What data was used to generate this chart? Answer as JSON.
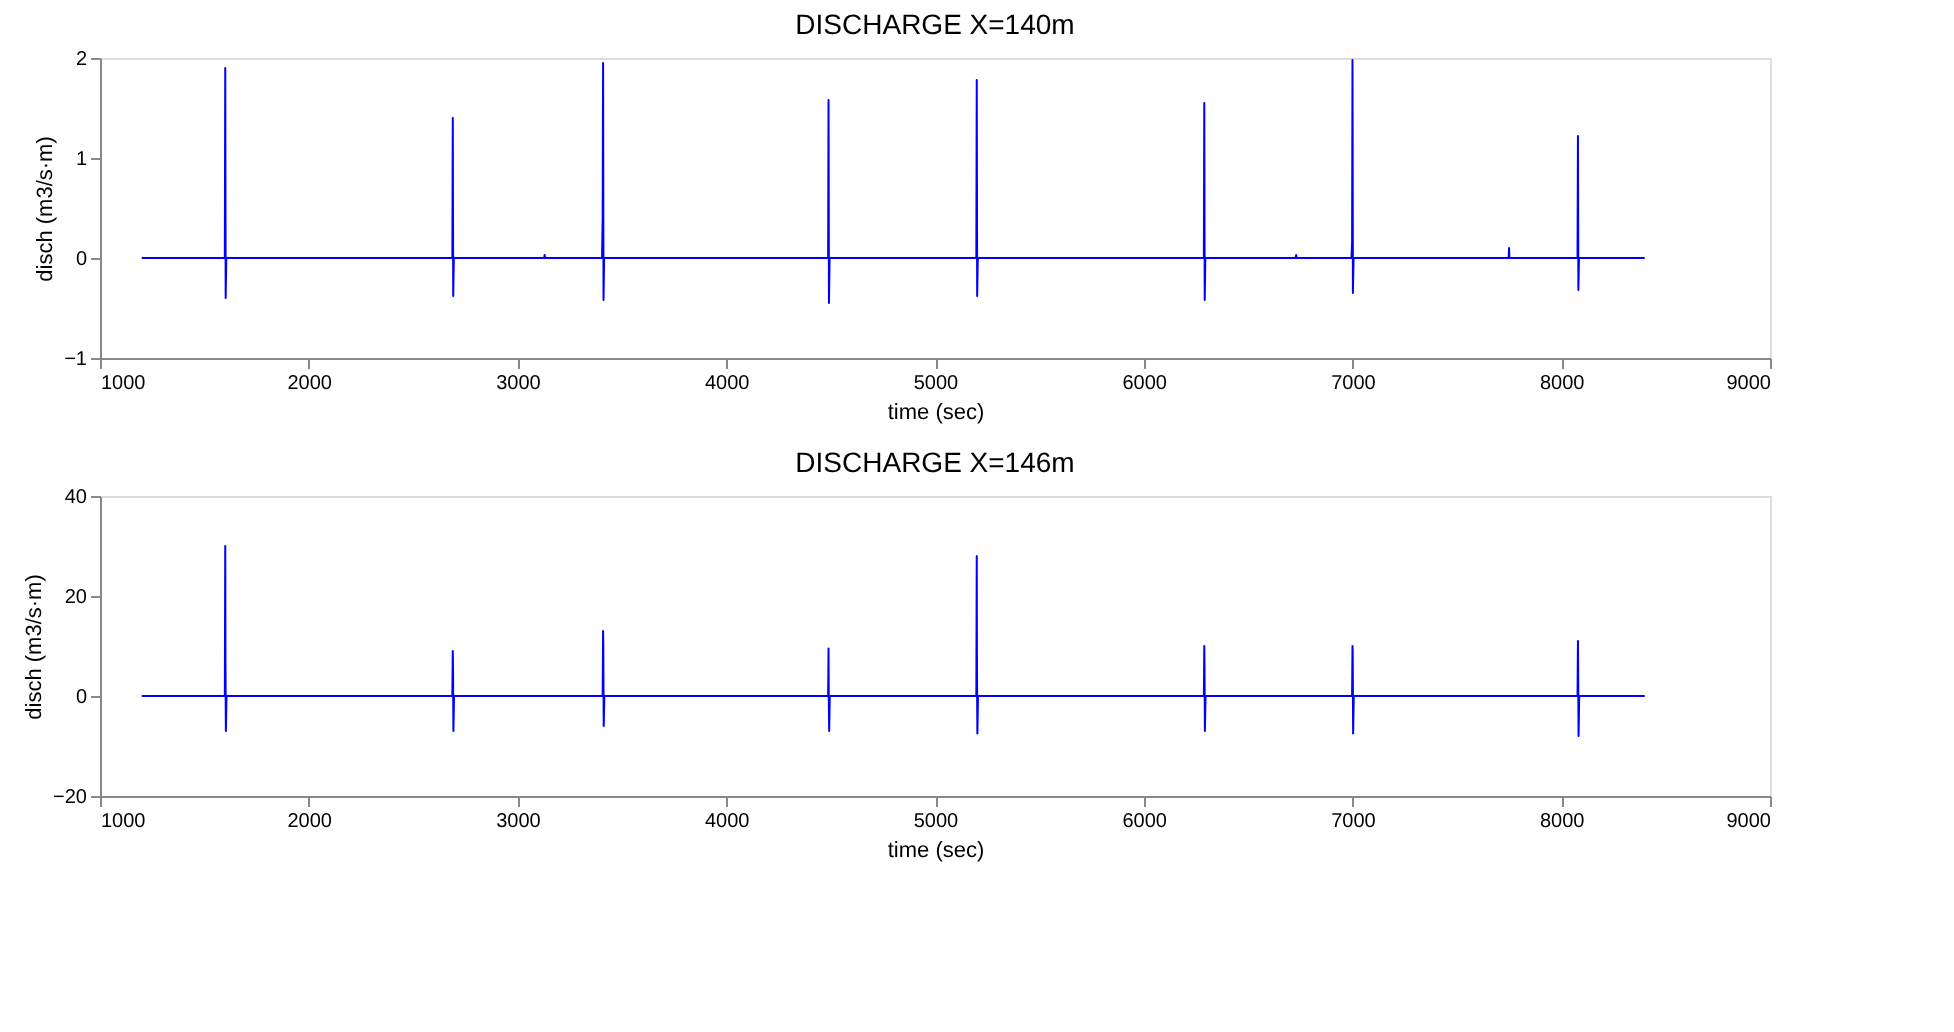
{
  "chart_data": [
    {
      "type": "line",
      "title": "DISCHARGE X=140m",
      "xlabel": "time (sec)",
      "ylabel": "disch (m3/s·m)",
      "xlim": [
        1000,
        9000
      ],
      "xticks": [
        1000,
        2000,
        3000,
        4000,
        5000,
        6000,
        7000,
        8000,
        9000
      ],
      "ylim": [
        -1,
        2
      ],
      "yticks": [
        -1,
        0,
        1,
        2
      ],
      "grid": false,
      "series": [
        {
          "color": "#0000ff",
          "x": [
            1200,
            1598,
            1600,
            1602,
            1605,
            2688,
            2690,
            2692,
            2695,
            3128,
            3130,
            3132,
            3405,
            3408,
            3410,
            3412,
            3415,
            4488,
            4490,
            4492,
            4495,
            5198,
            5200,
            5202,
            5205,
            6288,
            6290,
            6292,
            6295,
            6728,
            6730,
            6732,
            6995,
            6998,
            7000,
            7002,
            7005,
            7748,
            7750,
            7752,
            8078,
            8080,
            8082,
            8085,
            8400
          ],
          "values": [
            0,
            0,
            1.9,
            -0.4,
            0,
            0,
            1.4,
            -0.38,
            0,
            0,
            0.03,
            0,
            0,
            0.4,
            1.95,
            -0.42,
            0,
            0,
            1.58,
            -0.45,
            0,
            0,
            1.78,
            -0.38,
            0,
            0,
            1.55,
            -0.42,
            0,
            0,
            0.03,
            0,
            0,
            0.15,
            1.98,
            -0.35,
            0,
            0,
            0.1,
            0,
            0,
            1.22,
            -0.32,
            0,
            0
          ]
        }
      ]
    },
    {
      "type": "line",
      "title": "DISCHARGE X=146m",
      "xlabel": "time (sec)",
      "ylabel": "disch (m3/s·m)",
      "xlim": [
        1000,
        9000
      ],
      "xticks": [
        1000,
        2000,
        3000,
        4000,
        5000,
        6000,
        7000,
        8000,
        9000
      ],
      "ylim": [
        -20,
        40
      ],
      "yticks": [
        -20,
        0,
        20,
        40
      ],
      "grid": false,
      "series": [
        {
          "color": "#0000ff",
          "x": [
            1200,
            1598,
            1600,
            1601,
            1603,
            1606,
            2688,
            2690,
            2691,
            2693,
            2696,
            3408,
            3410,
            3411,
            3413,
            3416,
            4488,
            4490,
            4491,
            4493,
            4496,
            5198,
            5200,
            5201,
            5203,
            5206,
            6288,
            6290,
            6291,
            6293,
            6296,
            6998,
            7000,
            7001,
            7003,
            7006,
            8078,
            8080,
            8081,
            8083,
            8086,
            8400
          ],
          "values": [
            0,
            0,
            30,
            7,
            -7,
            0,
            0,
            9,
            6,
            -7,
            0,
            0,
            13,
            10,
            -6,
            0,
            0,
            9.5,
            0,
            -7,
            0,
            0,
            28,
            6,
            -7.5,
            0,
            0,
            10,
            6,
            -7,
            0,
            0,
            10,
            9,
            -7.5,
            0,
            0,
            11,
            5,
            -8,
            0,
            0
          ]
        }
      ]
    }
  ]
}
